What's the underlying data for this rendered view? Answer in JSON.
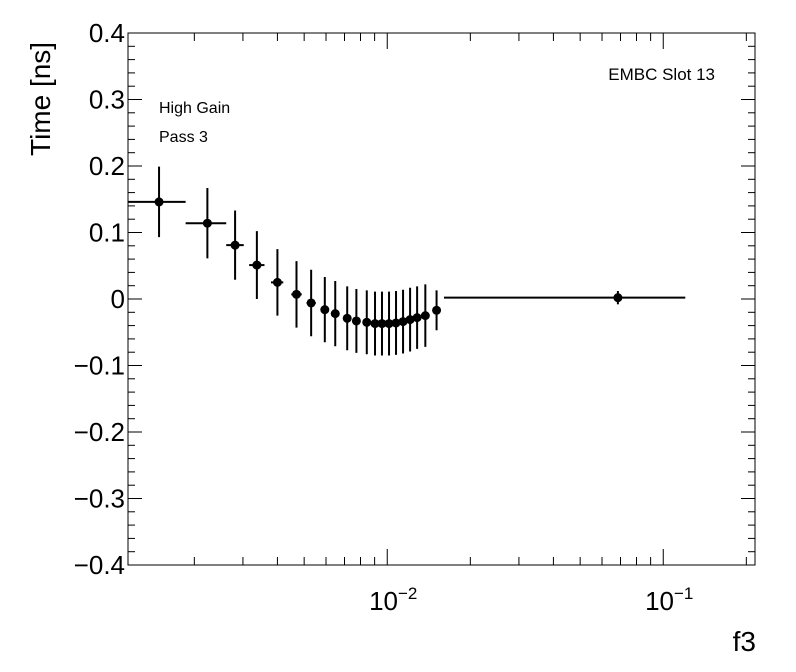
{
  "chart_data": {
    "type": "scatter",
    "ylabel": "Time [ns]",
    "xlabel": "f3",
    "x_scale": "log",
    "xlim": [
      0.00115,
      0.215
    ],
    "ylim": [
      -0.4,
      0.4
    ],
    "y_ticks": [
      -0.4,
      -0.3,
      -0.2,
      -0.1,
      0,
      0.1,
      0.2,
      0.3,
      0.4
    ],
    "y_tick_labels": [
      "−0.4",
      "−0.3",
      "−0.2",
      "−0.1",
      "0",
      "0.1",
      "0.2",
      "0.3",
      "0.4"
    ],
    "x_tick_labels": [
      {
        "value": 0.01,
        "base": "10",
        "exp": "−2"
      },
      {
        "value": 0.1,
        "base": "10",
        "exp": "−1"
      }
    ],
    "annotations": {
      "slot": "EMBC Slot 13",
      "gain": "High Gain",
      "pass": "Pass 3"
    },
    "marker_color": "#000000",
    "grid": false,
    "points": [
      {
        "x": 0.00149,
        "xlo": 0.00115,
        "xhi": 0.00186,
        "y": 0.146,
        "yerr": 0.053
      },
      {
        "x": 0.00223,
        "xlo": 0.00186,
        "xhi": 0.00261,
        "y": 0.114,
        "yerr": 0.053
      },
      {
        "x": 0.00281,
        "xlo": 0.00261,
        "xhi": 0.00302,
        "y": 0.081,
        "yerr": 0.052
      },
      {
        "x": 0.00337,
        "xlo": 0.00316,
        "xhi": 0.00359,
        "y": 0.051,
        "yerr": 0.051
      },
      {
        "x": 0.004,
        "xlo": 0.00379,
        "xhi": 0.0042,
        "y": 0.025,
        "yerr": 0.05
      },
      {
        "x": 0.00469,
        "xlo": 0.00449,
        "xhi": 0.0049,
        "y": 0.007,
        "yerr": 0.05
      },
      {
        "x": 0.0053,
        "xlo": 0.0051,
        "xhi": 0.00551,
        "y": -0.006,
        "yerr": 0.05
      },
      {
        "x": 0.00594,
        "xlo": 0.0058,
        "xhi": 0.00609,
        "y": -0.016,
        "yerr": 0.049
      },
      {
        "x": 0.00648,
        "xlo": 0.00634,
        "xhi": 0.00663,
        "y": -0.022,
        "yerr": 0.049
      },
      {
        "x": 0.00716,
        "xlo": 0.00701,
        "xhi": 0.00731,
        "y": -0.029,
        "yerr": 0.048
      },
      {
        "x": 0.00773,
        "xlo": 0.00759,
        "xhi": 0.00788,
        "y": -0.033,
        "yerr": 0.048
      },
      {
        "x": 0.00843,
        "xlo": 0.00828,
        "xhi": 0.00858,
        "y": -0.035,
        "yerr": 0.048
      },
      {
        "x": 0.00903,
        "xlo": 0.00888,
        "xhi": 0.00918,
        "y": -0.037,
        "yerr": 0.048
      },
      {
        "x": 0.00957,
        "xlo": 0.00942,
        "xhi": 0.00972,
        "y": -0.037,
        "yerr": 0.048
      },
      {
        "x": 0.01015,
        "xlo": 0.01,
        "xhi": 0.0103,
        "y": -0.037,
        "yerr": 0.048
      },
      {
        "x": 0.01076,
        "xlo": 0.01061,
        "xhi": 0.01091,
        "y": -0.036,
        "yerr": 0.048
      },
      {
        "x": 0.01141,
        "xlo": 0.01126,
        "xhi": 0.01156,
        "y": -0.034,
        "yerr": 0.048
      },
      {
        "x": 0.0121,
        "xlo": 0.01195,
        "xhi": 0.01225,
        "y": -0.031,
        "yerr": 0.048
      },
      {
        "x": 0.01283,
        "xlo": 0.01268,
        "xhi": 0.01298,
        "y": -0.028,
        "yerr": 0.047
      },
      {
        "x": 0.01374,
        "xlo": 0.01359,
        "xhi": 0.01389,
        "y": -0.025,
        "yerr": 0.047
      },
      {
        "x": 0.01509,
        "xlo": 0.0146,
        "xhi": 0.0156,
        "y": -0.017,
        "yerr": 0.03
      },
      {
        "x": 0.0685,
        "xlo": 0.01605,
        "xhi": 0.1202,
        "y": 0.002,
        "yerr": 0.01
      }
    ]
  }
}
